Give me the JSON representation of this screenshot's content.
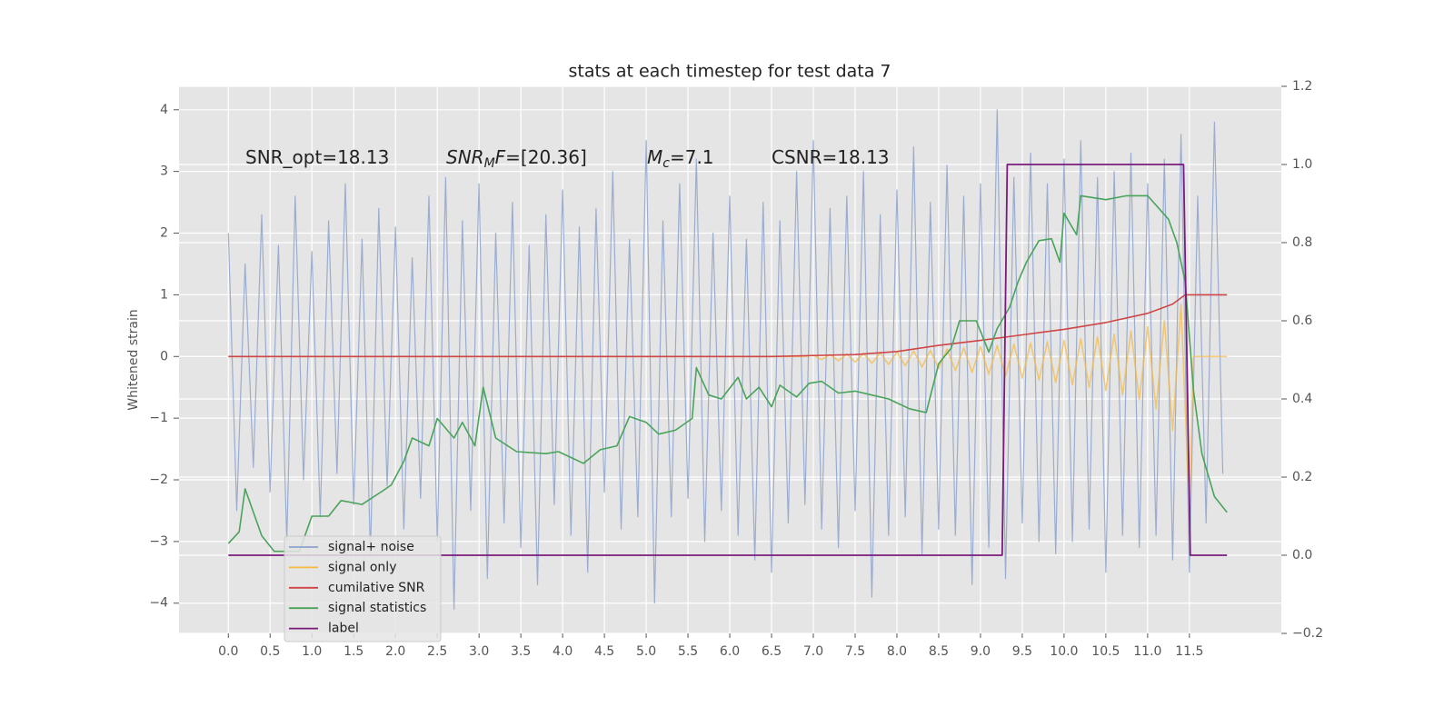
{
  "chart_data": {
    "type": "line",
    "title": "stats at each timestep for test data 7",
    "ylabel": "Whitened strain",
    "background": "#e5e5e5",
    "grid": true,
    "legend": "lower left",
    "xlim": [
      -0.59,
      12.6
    ],
    "ylim": [
      -4.49,
      4.38
    ],
    "y2lim": [
      -0.2,
      1.2
    ],
    "xticks": [
      {
        "value": 0,
        "label": "0.0"
      },
      0.5,
      {
        "value": 1,
        "label": "1.0"
      },
      1.5,
      {
        "value": 2,
        "label": "2.0"
      },
      2.5,
      {
        "value": 3,
        "label": "3.0"
      },
      3.5,
      {
        "value": 4,
        "label": "4.0"
      },
      4.5,
      {
        "value": 5,
        "label": "5.0"
      },
      5.5,
      {
        "value": 6,
        "label": "6.0"
      },
      6.5,
      {
        "value": 7,
        "label": "7.0"
      },
      7.5,
      {
        "value": 8,
        "label": "8.0"
      },
      8.5,
      {
        "value": 9,
        "label": "9.0"
      },
      9.5,
      {
        "value": 10,
        "label": "10.0"
      },
      10.5,
      {
        "value": 11,
        "label": "11.0"
      },
      11.5
    ],
    "yticks": [
      {
        "value": -4,
        "label": "−4"
      },
      {
        "value": -3,
        "label": "−3"
      },
      {
        "value": -2,
        "label": "−2"
      },
      {
        "value": -1,
        "label": "−1"
      },
      0,
      1,
      2,
      3,
      4
    ],
    "y2ticks": [
      {
        "value": -0.2,
        "label": "−0.2"
      },
      {
        "value": 0,
        "label": "0.0"
      },
      0.2,
      0.4,
      0.6,
      0.8,
      {
        "value": 1,
        "label": "1.0"
      },
      1.2
    ],
    "annotations": [
      [
        "SNR_opt=18.13"
      ],
      [
        "SNR",
        "M",
        "F",
        "=[20.36]"
      ],
      [
        "M",
        "c",
        "=7.1"
      ],
      [
        "CSNR=18.13"
      ]
    ],
    "series": [
      {
        "name": "signal+ noise",
        "color": "#8da2cc",
        "axis": "y",
        "x": [
          0,
          0.1,
          0.2,
          0.3,
          0.4,
          0.5,
          0.6,
          0.7,
          0.8,
          0.9,
          1,
          1.1,
          1.2,
          1.3,
          1.4,
          1.5,
          1.6,
          1.7,
          1.8,
          1.9,
          2,
          2.1,
          2.2,
          2.3,
          2.4,
          2.5,
          2.6,
          2.7,
          2.8,
          2.9,
          3,
          3.1,
          3.2,
          3.3,
          3.4,
          3.5,
          3.6,
          3.7,
          3.8,
          3.9,
          4,
          4.1,
          4.2,
          4.3,
          4.4,
          4.5,
          4.6,
          4.7,
          4.8,
          4.9,
          5,
          5.1,
          5.2,
          5.3,
          5.4,
          5.5,
          5.6,
          5.7,
          5.8,
          5.9,
          6,
          6.1,
          6.2,
          6.3,
          6.4,
          6.5,
          6.6,
          6.7,
          6.8,
          6.9,
          7,
          7.1,
          7.2,
          7.3,
          7.4,
          7.5,
          7.6,
          7.7,
          7.8,
          7.9,
          8,
          8.1,
          8.2,
          8.3,
          8.4,
          8.5,
          8.6,
          8.7,
          8.8,
          8.9,
          9,
          9.1,
          9.2,
          9.3,
          9.4,
          9.5,
          9.6,
          9.7,
          9.8,
          9.9,
          10,
          10.1,
          10.2,
          10.3,
          10.4,
          10.5,
          10.6,
          10.7,
          10.8,
          10.9,
          11,
          11.1,
          11.2,
          11.3,
          11.4,
          11.5,
          11.6,
          11.7,
          11.8,
          11.9
        ],
        "values": [
          2.0,
          -2.5,
          1.5,
          -1.8,
          2.3,
          -2.2,
          1.8,
          -3.0,
          2.6,
          -2.0,
          1.7,
          -2.6,
          2.2,
          -1.9,
          2.8,
          -2.4,
          1.9,
          -3.2,
          2.4,
          -2.1,
          2.1,
          -2.8,
          1.6,
          -2.3,
          2.6,
          -3.0,
          2.9,
          -4.1,
          2.2,
          -2.5,
          2.8,
          -3.6,
          2.0,
          -2.7,
          2.5,
          -3.1,
          1.8,
          -3.7,
          2.3,
          -2.4,
          2.7,
          -2.9,
          2.1,
          -3.5,
          2.4,
          -2.2,
          3.0,
          -2.8,
          1.9,
          -2.6,
          3.5,
          -4.0,
          2.2,
          -2.6,
          2.8,
          -2.3,
          3.2,
          -3.0,
          2.0,
          -2.5,
          2.6,
          -2.9,
          1.9,
          -3.3,
          2.5,
          -3.5,
          2.2,
          -2.7,
          3.0,
          -2.4,
          3.5,
          -2.8,
          2.4,
          -3.1,
          2.6,
          -2.5,
          3.0,
          -3.9,
          2.3,
          -2.9,
          2.7,
          -2.6,
          3.4,
          -3.2,
          2.5,
          -2.8,
          3.1,
          -2.9,
          2.6,
          -3.7,
          2.8,
          -3.1,
          4.0,
          -3.6,
          2.9,
          -2.7,
          3.3,
          -3.0,
          2.8,
          -3.2,
          3.2,
          -3.0,
          3.5,
          -2.8,
          2.9,
          -3.5,
          3.0,
          -2.9,
          3.3,
          -3.1,
          2.8,
          -2.9,
          3.2,
          -3.3,
          3.6,
          -3.5,
          2.6,
          -2.7,
          3.8,
          -1.9
        ]
      },
      {
        "name": "signal only",
        "color": "#f5b942",
        "axis": "y",
        "x": [
          0,
          6.9,
          7,
          7.1,
          7.2,
          7.3,
          7.4,
          7.5,
          7.6,
          7.7,
          7.8,
          7.9,
          8,
          8.1,
          8.2,
          8.3,
          8.4,
          8.5,
          8.6,
          8.7,
          8.8,
          8.9,
          9,
          9.1,
          9.2,
          9.3,
          9.4,
          9.5,
          9.6,
          9.7,
          9.8,
          9.9,
          10,
          10.1,
          10.2,
          10.3,
          10.4,
          10.5,
          10.6,
          10.7,
          10.8,
          10.9,
          11,
          11.1,
          11.2,
          11.3,
          11.4,
          11.5,
          11.55,
          11.95
        ],
        "values": [
          0,
          0,
          0.02,
          -0.05,
          0.03,
          -0.07,
          0.04,
          -0.09,
          0.05,
          -0.11,
          0.06,
          -0.13,
          0.07,
          -0.15,
          0.09,
          -0.17,
          0.1,
          -0.2,
          0.12,
          -0.23,
          0.14,
          -0.26,
          0.16,
          -0.29,
          0.18,
          -0.32,
          0.2,
          -0.35,
          0.22,
          -0.38,
          0.24,
          -0.42,
          0.26,
          -0.46,
          0.29,
          -0.5,
          0.32,
          -0.55,
          0.36,
          -0.62,
          0.41,
          -0.7,
          0.48,
          -0.85,
          0.58,
          -1.2,
          0.85,
          -2.5,
          0,
          0
        ]
      },
      {
        "name": "cumilative SNR",
        "color": "#d04545",
        "axis": "y",
        "x": [
          0,
          6.5,
          7.5,
          8,
          8.5,
          9,
          9.5,
          10,
          10.5,
          11,
          11.3,
          11.45,
          11.5,
          11.95
        ],
        "values": [
          0,
          0,
          0.03,
          0.08,
          0.18,
          0.26,
          0.35,
          0.44,
          0.55,
          0.7,
          0.85,
          1.0,
          1.0,
          1.0
        ]
      },
      {
        "name": "signal statistics",
        "color": "#4aa35a",
        "axis": "y2",
        "x": [
          0,
          0.13,
          0.2,
          0.4,
          0.55,
          0.85,
          1.0,
          1.2,
          1.35,
          1.6,
          1.85,
          1.95,
          2.1,
          2.2,
          2.4,
          2.5,
          2.7,
          2.8,
          2.95,
          3.05,
          3.2,
          3.45,
          3.8,
          3.95,
          4.25,
          4.45,
          4.65,
          4.8,
          5.0,
          5.15,
          5.35,
          5.55,
          5.6,
          5.75,
          5.9,
          6.1,
          6.2,
          6.35,
          6.5,
          6.6,
          6.8,
          6.95,
          7.1,
          7.3,
          7.5,
          7.7,
          7.9,
          8.15,
          8.35,
          8.5,
          8.65,
          8.75,
          8.95,
          9.1,
          9.2,
          9.35,
          9.45,
          9.55,
          9.7,
          9.85,
          9.95,
          10.0,
          10.15,
          10.2,
          10.5,
          10.75,
          11.0,
          11.25,
          11.35,
          11.45,
          11.55,
          11.65,
          11.8,
          11.95
        ],
        "values": [
          0.03,
          0.06,
          0.17,
          0.05,
          0.01,
          0.01,
          0.1,
          0.1,
          0.14,
          0.13,
          0.165,
          0.18,
          0.24,
          0.3,
          0.28,
          0.35,
          0.3,
          0.34,
          0.28,
          0.43,
          0.3,
          0.265,
          0.26,
          0.265,
          0.235,
          0.27,
          0.28,
          0.355,
          0.34,
          0.31,
          0.32,
          0.35,
          0.48,
          0.41,
          0.4,
          0.455,
          0.4,
          0.43,
          0.38,
          0.435,
          0.405,
          0.44,
          0.445,
          0.415,
          0.42,
          0.41,
          0.4,
          0.375,
          0.365,
          0.49,
          0.53,
          0.6,
          0.6,
          0.52,
          0.58,
          0.635,
          0.7,
          0.75,
          0.805,
          0.81,
          0.75,
          0.875,
          0.82,
          0.92,
          0.91,
          0.92,
          0.92,
          0.86,
          0.8,
          0.7,
          0.42,
          0.26,
          0.15,
          0.11
        ]
      },
      {
        "name": "label",
        "color": "#7b1a7b",
        "axis": "y2",
        "x": [
          0,
          9.26,
          9.32,
          11.43,
          11.51,
          11.95
        ],
        "values": [
          0,
          0,
          1,
          1,
          0,
          0
        ]
      }
    ]
  }
}
